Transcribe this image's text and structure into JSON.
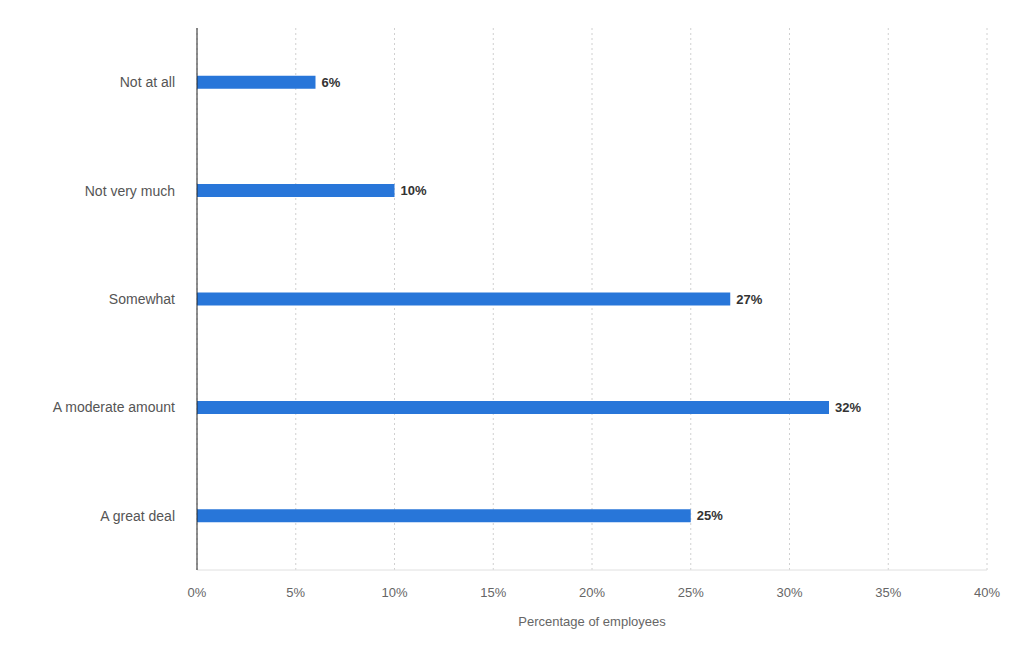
{
  "chart_data": {
    "type": "bar",
    "orientation": "horizontal",
    "x_label": "Percentage of employees",
    "categories": [
      "Not at all",
      "Not very much",
      "Somewhat",
      "A moderate amount",
      "A great deal"
    ],
    "values": [
      6,
      10,
      27,
      32,
      25
    ],
    "value_labels": [
      "6%",
      "10%",
      "27%",
      "32%",
      "25%"
    ],
    "color": "#2876d9",
    "xlim": [
      0,
      40
    ],
    "xticks": [
      {
        "value": 0,
        "label": "0%"
      },
      {
        "value": 5,
        "label": "5%"
      },
      {
        "value": 10,
        "label": "10%"
      },
      {
        "value": 15,
        "label": "15%"
      },
      {
        "value": 20,
        "label": "20%"
      },
      {
        "value": 25,
        "label": "25%"
      },
      {
        "value": 30,
        "label": "30%"
      },
      {
        "value": 35,
        "label": "35%"
      },
      {
        "value": 40,
        "label": "40%"
      }
    ],
    "grid": true,
    "data_labels": true
  }
}
